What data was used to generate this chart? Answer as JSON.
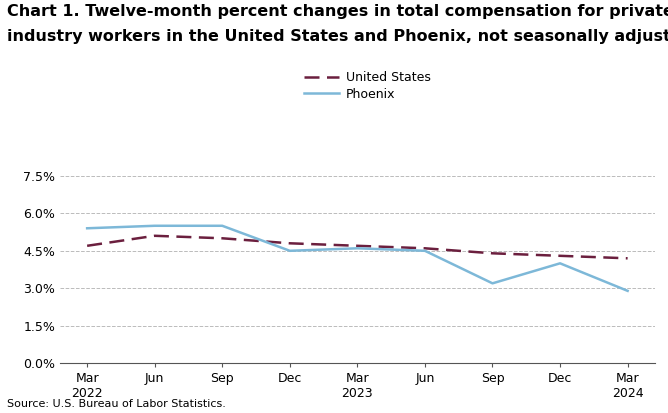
{
  "title_line1": "Chart 1. Twelve-month percent changes in total compensation for private",
  "title_line2": "industry workers in the United States and Phoenix, not seasonally adjusted",
  "source": "Source: U.S. Bureau of Labor Statistics.",
  "x_labels": [
    "Mar\n2022",
    "Jun",
    "Sep",
    "Dec",
    "Mar\n2023",
    "Jun",
    "Sep",
    "Dec",
    "Mar\n2024"
  ],
  "x_positions": [
    0,
    1,
    2,
    3,
    4,
    5,
    6,
    7,
    8
  ],
  "us_data": [
    4.7,
    5.1,
    5.0,
    4.8,
    4.7,
    4.6,
    4.4,
    4.3,
    4.2
  ],
  "phoenix_data": [
    5.4,
    5.5,
    5.5,
    4.5,
    4.6,
    4.5,
    3.2,
    4.0,
    2.9
  ],
  "us_color": "#6b1f3e",
  "phoenix_color": "#7db8d8",
  "ylim": [
    0,
    8.25
  ],
  "yticks": [
    0.0,
    1.5,
    3.0,
    4.5,
    6.0,
    7.5
  ],
  "ytick_labels": [
    "0.0%",
    "1.5%",
    "3.0%",
    "4.5%",
    "6.0%",
    "7.5%"
  ],
  "grid_color": "#bbbbbb",
  "background_color": "#ffffff",
  "title_fontsize": 11.5,
  "label_fontsize": 9,
  "legend_labels": [
    "United States",
    "Phoenix"
  ],
  "us_linewidth": 1.8,
  "phoenix_linewidth": 1.8
}
